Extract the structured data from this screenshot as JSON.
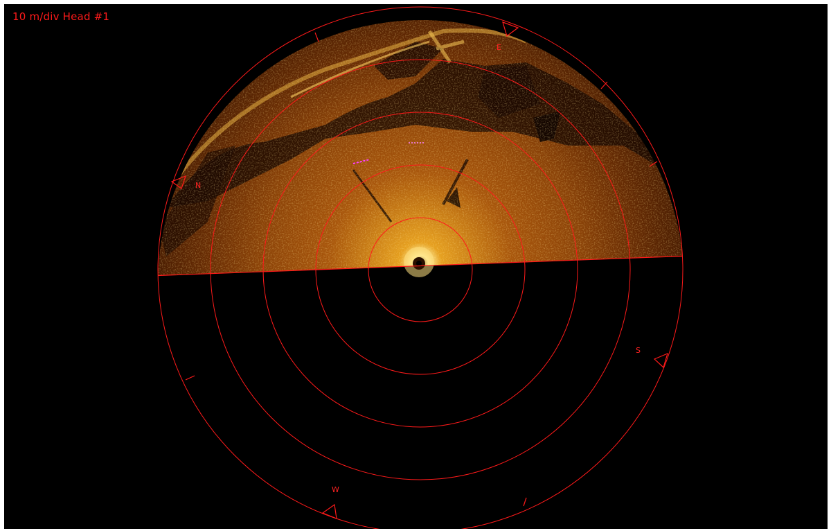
{
  "window": {
    "title": "10 m/div Head #1"
  },
  "sonar": {
    "range_units": "m/div",
    "range_per_division": 10,
    "rings": 5,
    "head": 1,
    "sector_scanned": "upper half",
    "colors": {
      "overlay": "#ff1a1a",
      "echo_bright": "#ffd24a",
      "echo_mid": "#b8620f",
      "echo_dark": "#3a1500",
      "background": "#000000"
    }
  },
  "compass": {
    "north": "N",
    "east": "E",
    "south": "S",
    "west": "W"
  }
}
